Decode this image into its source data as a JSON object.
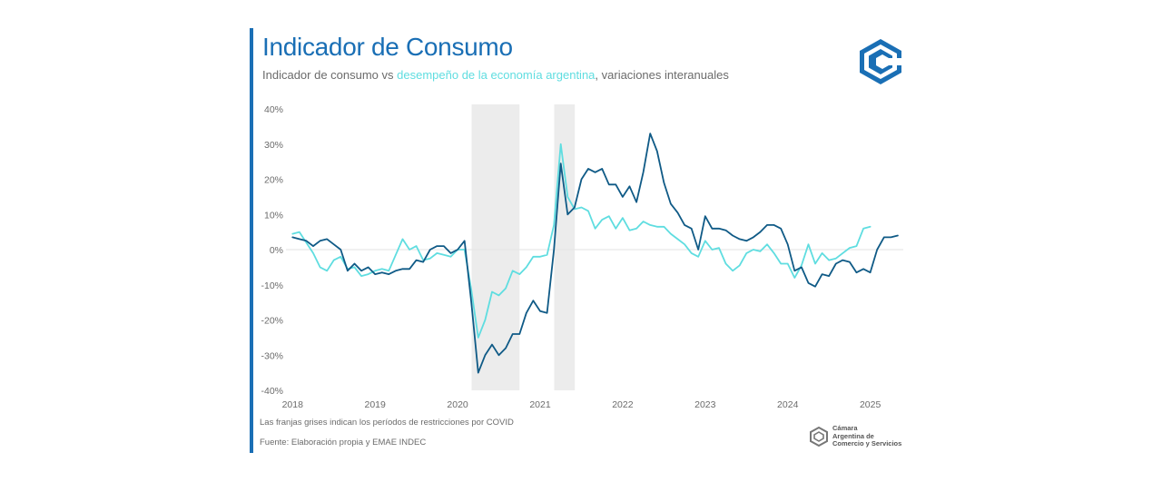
{
  "header": {
    "title": "Indicador de Consumo",
    "subtitle_prefix": "Indicador de consumo vs ",
    "subtitle_highlight": "desempeño de la economía argentina",
    "subtitle_suffix": ", variaciones interanuales"
  },
  "footer": {
    "note": "Las franjas grises indican los períodos de restricciones por COVID",
    "source": "Fuente: Elaboración propia y EMAE INDEC",
    "org_line1": "Cámara",
    "org_line2": "Argentina de",
    "org_line3": "Comercio y Servicios"
  },
  "colors": {
    "accent": "#1a6fb5",
    "consumo": "#0f5a86",
    "emae": "#5fdde0",
    "shade": "#ececec",
    "grid": "#e3e3e3",
    "text": "#6b6b6b"
  },
  "icons": {
    "logo": "cac-logo-icon"
  },
  "chart_data": {
    "type": "line",
    "title": "Indicador de Consumo",
    "xlabel": "",
    "ylabel": "",
    "x_start": "2018-01",
    "x_step": "month",
    "xlim": [
      2017.92,
      2025.4
    ],
    "ylim": [
      -40,
      40
    ],
    "yticks": [
      -40,
      -30,
      -20,
      -10,
      0,
      10,
      20,
      30,
      40
    ],
    "ytick_labels": [
      "-40%",
      "-30%",
      "-20%",
      "-10%",
      "0%",
      "10%",
      "20%",
      "30%",
      "40%"
    ],
    "xticks": [
      2018,
      2019,
      2020,
      2021,
      2022,
      2023,
      2024,
      2025
    ],
    "xtick_labels": [
      "2018",
      "2019",
      "2020",
      "2021",
      "2022",
      "2023",
      "2024",
      "2025"
    ],
    "shaded_periods": [
      {
        "start": 2020.17,
        "end": 2020.75,
        "label": "COVID"
      },
      {
        "start": 2021.17,
        "end": 2021.42,
        "label": "COVID"
      }
    ],
    "series": [
      {
        "name": "Indicador de consumo",
        "color": "#0f5a86",
        "values": [
          3.5,
          3,
          2.5,
          1,
          2.5,
          3,
          1.5,
          0,
          -6,
          -4,
          -6,
          -5,
          -7,
          -6.5,
          -7,
          -6,
          -5.5,
          -5.5,
          -3,
          -3.5,
          0,
          1,
          1,
          -1,
          0,
          2.5,
          -15,
          -35,
          -30,
          -27,
          -30,
          -28,
          -24,
          -24,
          -18,
          -14.5,
          -17.5,
          -18,
          0,
          24.5,
          10,
          12,
          20,
          23,
          22,
          23,
          18.5,
          18.5,
          15,
          18,
          13.5,
          22,
          33,
          28,
          19,
          13,
          10.5,
          7,
          6,
          0,
          9.5,
          6,
          6,
          5.5,
          4,
          3,
          2.5,
          3.5,
          5,
          7,
          7,
          6,
          1.5,
          -6,
          -5,
          -9.5,
          -10.5,
          -7,
          -7.5,
          -4,
          -3,
          -3.5,
          -6.5,
          -5.5,
          -6.5,
          0,
          3.5,
          3.5,
          4
        ]
      },
      {
        "name": "EMAE",
        "color": "#5fdde0",
        "values": [
          4.5,
          5,
          2,
          -1,
          -5,
          -6,
          -3,
          -2,
          -5.5,
          -5,
          -7.5,
          -7,
          -6,
          -5.5,
          -6,
          -1.5,
          3,
          0,
          1,
          -3,
          -2.5,
          -1,
          -1.5,
          -2,
          0,
          0,
          -11.5,
          -25,
          -20,
          -12,
          -13,
          -11,
          -6,
          -7,
          -5,
          -2,
          -2,
          -1.5,
          7,
          30,
          15,
          11.5,
          12,
          11,
          6,
          8.5,
          9.5,
          6,
          9,
          5.5,
          6,
          8,
          7,
          6.5,
          6.5,
          4.5,
          3,
          1.5,
          -1,
          -2,
          2.5,
          0,
          0.5,
          -4,
          -6,
          -4.5,
          -1,
          0,
          -0.5,
          1.5,
          -1,
          -4,
          -4,
          -8,
          -4.5,
          1.5,
          -4,
          -1,
          -3,
          -2.5,
          -1,
          0.5,
          1,
          6,
          6.5
        ]
      }
    ]
  }
}
